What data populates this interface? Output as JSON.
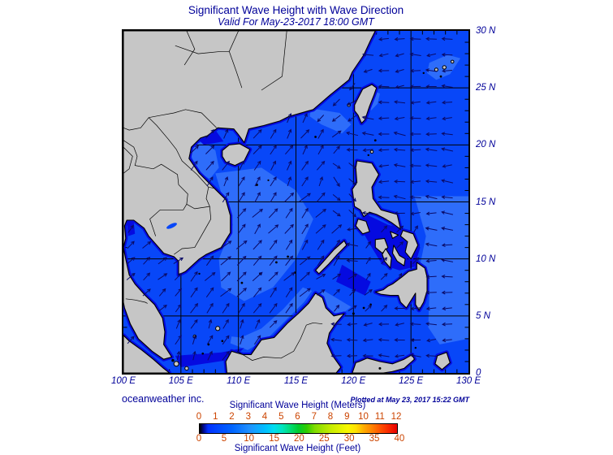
{
  "title": "Significant Wave Height with Wave Direction",
  "subtitle": "Valid For May-23-2017 18:00 GMT",
  "credit": "oceanweather inc.",
  "plotted": "Plotted at May 23, 2017 15:22 GMT",
  "axes": {
    "x_labels": [
      "100 E",
      "105 E",
      "110 E",
      "115 E",
      "120 E",
      "125 E",
      "130 E"
    ],
    "y_labels": [
      "30 N",
      "25 N",
      "20 N",
      "15 N",
      "10 N",
      "5 N",
      "0"
    ],
    "lon_range": [
      100,
      130
    ],
    "lat_range": [
      0,
      30
    ],
    "grid_step_deg": 5,
    "minor_tick_deg": 1
  },
  "colorbar": {
    "meters_label": "Significant Wave Height (Meters)",
    "feet_label": "Significant Wave Height (Feet)",
    "meters_ticks": [
      0,
      1,
      2,
      3,
      4,
      5,
      6,
      7,
      8,
      9,
      10,
      11,
      12
    ],
    "feet_ticks": [
      0,
      5,
      10,
      15,
      20,
      25,
      30,
      35,
      40
    ],
    "tick_color": "#cc4400",
    "text_color": "#000099",
    "meters_max": 12,
    "feet_per_meter": 3.28084,
    "stops": [
      [
        0,
        "#000000"
      ],
      [
        0.02,
        "#000a90"
      ],
      [
        0.0417,
        "#0030ff"
      ],
      [
        0.0833,
        "#0044ff"
      ],
      [
        0.1667,
        "#0066ff"
      ],
      [
        0.25,
        "#2090ff"
      ],
      [
        0.3333,
        "#00c0ff"
      ],
      [
        0.375,
        "#00dcf0"
      ],
      [
        0.4167,
        "#00e4c0"
      ],
      [
        0.4583,
        "#00dc78"
      ],
      [
        0.5,
        "#00cc30"
      ],
      [
        0.5417,
        "#30cc00"
      ],
      [
        0.5833,
        "#80dc00"
      ],
      [
        0.6667,
        "#c8ec00"
      ],
      [
        0.75,
        "#f8f800"
      ],
      [
        0.7917,
        "#ffe000"
      ],
      [
        0.8333,
        "#ffaa00"
      ],
      [
        0.875,
        "#ff8000"
      ],
      [
        0.9167,
        "#ff5000"
      ],
      [
        0.9583,
        "#f82800"
      ],
      [
        1,
        "#e80000"
      ]
    ]
  },
  "map": {
    "colors": {
      "land": "#c6c6c6",
      "coast": "#000000",
      "ocean": "#0847f8",
      "ocean_light": "#2e6dfa",
      "ocean_dark": "#050ae0",
      "fringe": "#050ae0",
      "arrow": "#0a0a66",
      "grid": "#000000",
      "border": "#000000"
    },
    "land": {
      "mainland": [
        100,
        30,
        121.9,
        30,
        121.5,
        29.2,
        120.9,
        27.9,
        119.9,
        26.4,
        119.6,
        25.7,
        118,
        24.4,
        116.5,
        23.1,
        114.4,
        22.5,
        113.6,
        22.1,
        112.2,
        21.7,
        110.9,
        21.4,
        110.5,
        20.2,
        110,
        20.9,
        109.6,
        21.4,
        108.2,
        21.5,
        107.3,
        20.8,
        106.7,
        20.6,
        105.9,
        19.8,
        105.7,
        18.8,
        106.6,
        17.5,
        107.9,
        16.2,
        108.9,
        15.2,
        109.3,
        13.8,
        109.3,
        12.3,
        108.5,
        11,
        107.2,
        10.4,
        106.6,
        10,
        105.4,
        8.9,
        104.8,
        8.6,
        104.8,
        9.8,
        104.4,
        10.2,
        103.5,
        10.5,
        102.9,
        11.2,
        102.2,
        12,
        101.8,
        12.7,
        100.9,
        13.4,
        100.3,
        13.4,
        100.1,
        12.9,
        100.2,
        11.8,
        100,
        11,
        100.2,
        10,
        100.5,
        8.6,
        101,
        7.8,
        101.9,
        6.8,
        102.7,
        6,
        103.4,
        4.8,
        103.6,
        3.6,
        103.5,
        2.5,
        104.2,
        1.4,
        103.5,
        1.2,
        102.5,
        1.9,
        101.3,
        3,
        100.6,
        4.3,
        100.1,
        5.7,
        100,
        6.2
      ],
      "sumatra": [
        100,
        3.3,
        100.5,
        2.8,
        101.6,
        2,
        102.6,
        1.2,
        103.5,
        0.4,
        104,
        0,
        100,
        0
      ],
      "borneo": [
        108.9,
        1,
        109.4,
        1.9,
        110.4,
        1.6,
        111.1,
        1.6,
        112,
        2.9,
        113.1,
        3.1,
        114.3,
        4.4,
        115.2,
        5.2,
        116.1,
        6.1,
        116.7,
        7,
        117.3,
        6.6,
        117.6,
        5.7,
        118.3,
        5,
        119.2,
        5.2,
        118.5,
        4.4,
        117.9,
        3.5,
        117.7,
        2.6,
        118.2,
        1.5,
        118.9,
        0.5,
        118.5,
        0,
        109,
        0
      ],
      "luzon": [
        120.3,
        18.6,
        121.6,
        18.4,
        122.2,
        17.4,
        121.6,
        16.3,
        121.7,
        15.3,
        122.4,
        14.3,
        123.8,
        13.9,
        124.1,
        12.6,
        123.3,
        13.2,
        122.6,
        13.6,
        122,
        13.9,
        121.4,
        14.1,
        120.9,
        13.7,
        120.6,
        14.3,
        120.1,
        14.6,
        119.9,
        16.1,
        120.3,
        16.7,
        120.2,
        18
      ],
      "mindoro": [
        120.4,
        13.5,
        121.1,
        13.3,
        121.4,
        12.4,
        120.8,
        12.2,
        120.2,
        12.9
      ],
      "palawan": [
        117,
        8.7,
        117.8,
        9.5,
        118.6,
        10.4,
        119.4,
        11.2,
        119.2,
        11.6,
        118.3,
        10.8,
        117.5,
        9.9,
        116.7,
        9
      ],
      "panay": [
        121.9,
        11.7,
        122.7,
        11.8,
        123,
        11,
        122.5,
        10.5,
        121.9,
        11
      ],
      "negros": [
        122.8,
        10.9,
        123.3,
        10.1,
        123.2,
        9.2,
        122.7,
        9.8,
        122.5,
        10.4
      ],
      "cebu_bohol": [
        123.5,
        11.2,
        124,
        10.3,
        124.5,
        10,
        124.4,
        9.4,
        123.8,
        9.8,
        123.4,
        10.5
      ],
      "samar_leyte": [
        124.3,
        12.5,
        125.2,
        12.2,
        125.6,
        11.2,
        125,
        10,
        124.5,
        10.6,
        124.7,
        11.5,
        124.1,
        12
      ],
      "masbate": [
        123.2,
        12.4,
        123.9,
        12.1,
        123.4,
        11.8
      ],
      "mindanao": [
        121.9,
        7.1,
        122.6,
        7.3,
        123,
        7.6,
        123.4,
        7.8,
        124.2,
        8.4,
        124.8,
        8.9,
        125.5,
        9.1,
        125.5,
        9.7,
        126.2,
        9.2,
        126.4,
        8.4,
        126.4,
        7.2,
        126.1,
        6.2,
        125.7,
        5.5,
        125.4,
        6,
        125.4,
        7,
        124.9,
        6.2,
        124.6,
        5.7,
        124.1,
        6.2,
        123.9,
        6.8,
        123.2,
        6.8,
        122.4,
        6.9
      ],
      "taiwan": [
        120.1,
        23.5,
        120.8,
        24.9,
        121.6,
        25.3,
        122,
        25,
        121.8,
        24.4,
        121.4,
        23.4,
        121,
        22.2,
        120.7,
        21.9,
        120.4,
        22.6,
        120.1,
        23
      ],
      "hainan": [
        108.6,
        19.5,
        109.2,
        20,
        110.1,
        20.1,
        111,
        19.6,
        110.5,
        18.6,
        109.7,
        18.2,
        108.9,
        18.5,
        108.6,
        19
      ],
      "sulawesi": [
        119.9,
        0,
        120.2,
        0.9,
        120.5,
        1,
        121.2,
        1.3,
        122.3,
        1,
        123.4,
        0.8,
        124.4,
        1.2,
        125.1,
        1.6,
        125.3,
        1.2,
        124.4,
        0.4,
        123.3,
        0.1,
        122.6,
        0
      ],
      "halmahera": [
        127.3,
        1.5,
        128.1,
        1.8,
        128.4,
        0.9,
        127.7,
        0.3,
        127.1,
        0.8
      ]
    },
    "islets": [
      [
        127.2,
        26.6,
        2
      ],
      [
        127.9,
        26.8,
        2.2
      ],
      [
        128.6,
        27.3,
        1.8
      ],
      [
        127.6,
        26,
        1.4
      ],
      [
        126.1,
        26.3,
        1.2
      ],
      [
        121.9,
        20.4,
        1.4
      ],
      [
        121.6,
        19.4,
        1.8
      ],
      [
        121.3,
        19.1,
        1.2
      ],
      [
        119.6,
        23.5,
        1.8
      ],
      [
        116.7,
        20.7,
        1.4
      ],
      [
        111.6,
        16.5,
        1.5
      ],
      [
        112.6,
        16.9,
        1.1
      ],
      [
        111.9,
        8.7,
        1.5
      ],
      [
        113.3,
        9.7,
        1.4
      ],
      [
        114.3,
        10.2,
        1.4
      ],
      [
        114.9,
        8.8,
        1.3
      ],
      [
        110.3,
        7.9,
        1.4
      ],
      [
        108.2,
        3.9,
        2.6
      ],
      [
        106.2,
        3.2,
        1.8
      ],
      [
        104.6,
        0.8,
        3
      ],
      [
        105.5,
        0.4,
        2.2
      ],
      [
        104.3,
        1.1,
        1.7
      ],
      [
        107.4,
        2.5,
        1.4
      ],
      [
        108.6,
        2.8,
        1.3
      ],
      [
        106.9,
        1.7,
        1.3
      ],
      [
        106.6,
        8.7,
        1.2
      ],
      [
        120,
        5.2,
        1.5
      ],
      [
        120.9,
        5.7,
        1.4
      ],
      [
        121.5,
        6,
        1.3
      ],
      [
        122.3,
        0.4,
        1.5
      ],
      [
        125.2,
        2.9,
        1.3
      ],
      [
        125.4,
        2.2,
        1.2
      ]
    ],
    "light_patches": [
      [
        108,
        17.5,
        112,
        18,
        115,
        16,
        116.5,
        13.5,
        115,
        10,
        113,
        7.5,
        110.5,
        6.3,
        108.5,
        7.5,
        108.3,
        10,
        109.5,
        13,
        108.6,
        15.5
      ],
      [
        107,
        20.3,
        108,
        19.5,
        108.3,
        18,
        107.5,
        17,
        106.6,
        17.6,
        105.9,
        19,
        106,
        20
      ],
      [
        116.3,
        23.2,
        118.8,
        22.8,
        119.8,
        21.8,
        119,
        21,
        117.2,
        21.8,
        116.2,
        22.5
      ],
      [
        121.7,
        24.8,
        122.3,
        24.5,
        122.1,
        23.6,
        121.5,
        23,
        121.3,
        23.8
      ],
      [
        125.3,
        15.5,
        130,
        15.5,
        130,
        3,
        127.5,
        2.5,
        126.5,
        4,
        126.6,
        7,
        125.8,
        9.5,
        126.3,
        12
      ],
      [
        117.3,
        7.3,
        119.8,
        5.8,
        118.8,
        5,
        117,
        6.2
      ],
      [
        126.6,
        27.2,
        128.2,
        27.9,
        129.3,
        27.6,
        128.4,
        26.2,
        127.2,
        25.7,
        126.4,
        26.3
      ],
      [
        109.3,
        2.6,
        110.8,
        2,
        112.5,
        3,
        114.3,
        4.8,
        115.7,
        6.2,
        116.4,
        7.2,
        115.6,
        7.5,
        113.9,
        5.6,
        112,
        3.9,
        110.2,
        3.1,
        109.4,
        3.2
      ]
    ],
    "dark_patches": [
      [
        120.9,
        14,
        123,
        13,
        125,
        12.5,
        125.8,
        11,
        125.3,
        9.3,
        124,
        9,
        122.5,
        9.5,
        121.3,
        11.5,
        120.6,
        12.8
      ],
      [
        105.9,
        21,
        108,
        21.3,
        108.7,
        20.3,
        107,
        20
      ],
      [
        104.5,
        1.5,
        108.5,
        1.8,
        110.5,
        2.2,
        109.5,
        1.2,
        105,
        0.5
      ],
      [
        119,
        9.5,
        121.5,
        8,
        121,
        6.8,
        118.5,
        8
      ],
      [
        100.3,
        13.3,
        100.9,
        13.2,
        101,
        12.2,
        100.4,
        12
      ]
    ],
    "borders": [
      [
        108.1,
        21.5,
        106.8,
        22.8,
        105.4,
        23.1,
        104.4,
        22.8,
        103.3,
        22.6,
        102.2,
        22.4
      ],
      [
        102.2,
        22.4,
        101.5,
        21.5,
        100.5,
        21.3,
        100,
        21.5
      ],
      [
        102.2,
        22.4,
        102.9,
        21.7,
        103.9,
        20.5,
        104.6,
        19.6,
        105.1,
        18.6,
        106.4,
        17.4,
        107.4,
        16.3,
        107.9,
        16.2
      ],
      [
        100,
        20.4,
        100.9,
        19.8,
        101.2,
        19,
        101,
        18.2,
        102.6,
        17.9,
        103.3,
        18.3,
        104.7,
        17.4,
        104.8,
        16.5,
        105.6,
        15.7,
        105.5,
        14.8
      ],
      [
        105.5,
        14.8,
        105.2,
        14.3,
        103.2,
        14.3,
        102.3,
        13.5,
        102.8,
        12
      ],
      [
        105.5,
        14.8,
        106.2,
        14.4,
        107.5,
        14.6,
        107.6,
        13.5,
        106.2,
        11,
        105.1,
        10.9,
        104.4,
        10.4
      ],
      [
        107.4,
        16.3,
        107.2,
        15.3,
        107.5,
        14.6
      ],
      [
        100.2,
        6.5,
        101,
        6.4,
        101.9,
        6.2,
        102.1,
        6.1
      ],
      [
        109.9,
        1.9,
        111.2,
        1.1,
        112.2,
        1.4,
        113.7,
        1.3,
        114.8,
        1.9,
        115.4,
        3,
        115.9,
        4.2,
        116.5,
        4.4,
        117.3,
        4.3
      ],
      [
        114.2,
        30,
        114,
        28,
        113.8,
        26,
        112,
        24.8
      ],
      [
        110,
        30,
        109.2,
        28.2,
        109.8,
        26.5,
        110.3,
        25
      ],
      [
        104.5,
        28.7,
        106.5,
        28,
        108.5,
        28.2,
        109.2,
        28.2
      ],
      [
        105.5,
        30,
        106.2,
        28.4,
        105.3,
        27
      ],
      [
        100,
        19.8,
        100.8,
        19,
        100.5,
        17.9,
        100,
        17.5
      ]
    ],
    "lake": {
      "lon": 104.2,
      "lat": 12.9,
      "rx": 7,
      "ry": 2.5,
      "rot": -25
    },
    "arrows": {
      "spacing": 19.5,
      "head": 4,
      "jitter_deg": 14,
      "regions": [
        [
          120.5,
          8,
          125.5,
          13.8,
          40,
          10
        ],
        [
          117,
          5.5,
          123,
          9.8,
          50,
          11
        ],
        [
          117.5,
          0,
          130,
          6.5,
          268,
          12
        ],
        [
          117.5,
          13.5,
          120.8,
          19,
          135,
          12
        ],
        [
          116.5,
          21.5,
          121,
          26,
          232,
          12
        ],
        [
          99,
          5.5,
          106,
          13.8,
          45,
          12
        ],
        [
          103.5,
          0,
          112,
          5.5,
          25,
          12
        ],
        [
          105,
          5.5,
          119.8,
          16.5,
          42,
          15
        ],
        [
          105,
          16.5,
          117.5,
          22.5,
          32,
          13
        ],
        [
          105,
          22.5,
          130.5,
          30,
          266,
          12
        ],
        [
          119.8,
          6.5,
          130.5,
          22.5,
          272,
          13
        ]
      ],
      "default": [
        45,
        12
      ]
    }
  }
}
